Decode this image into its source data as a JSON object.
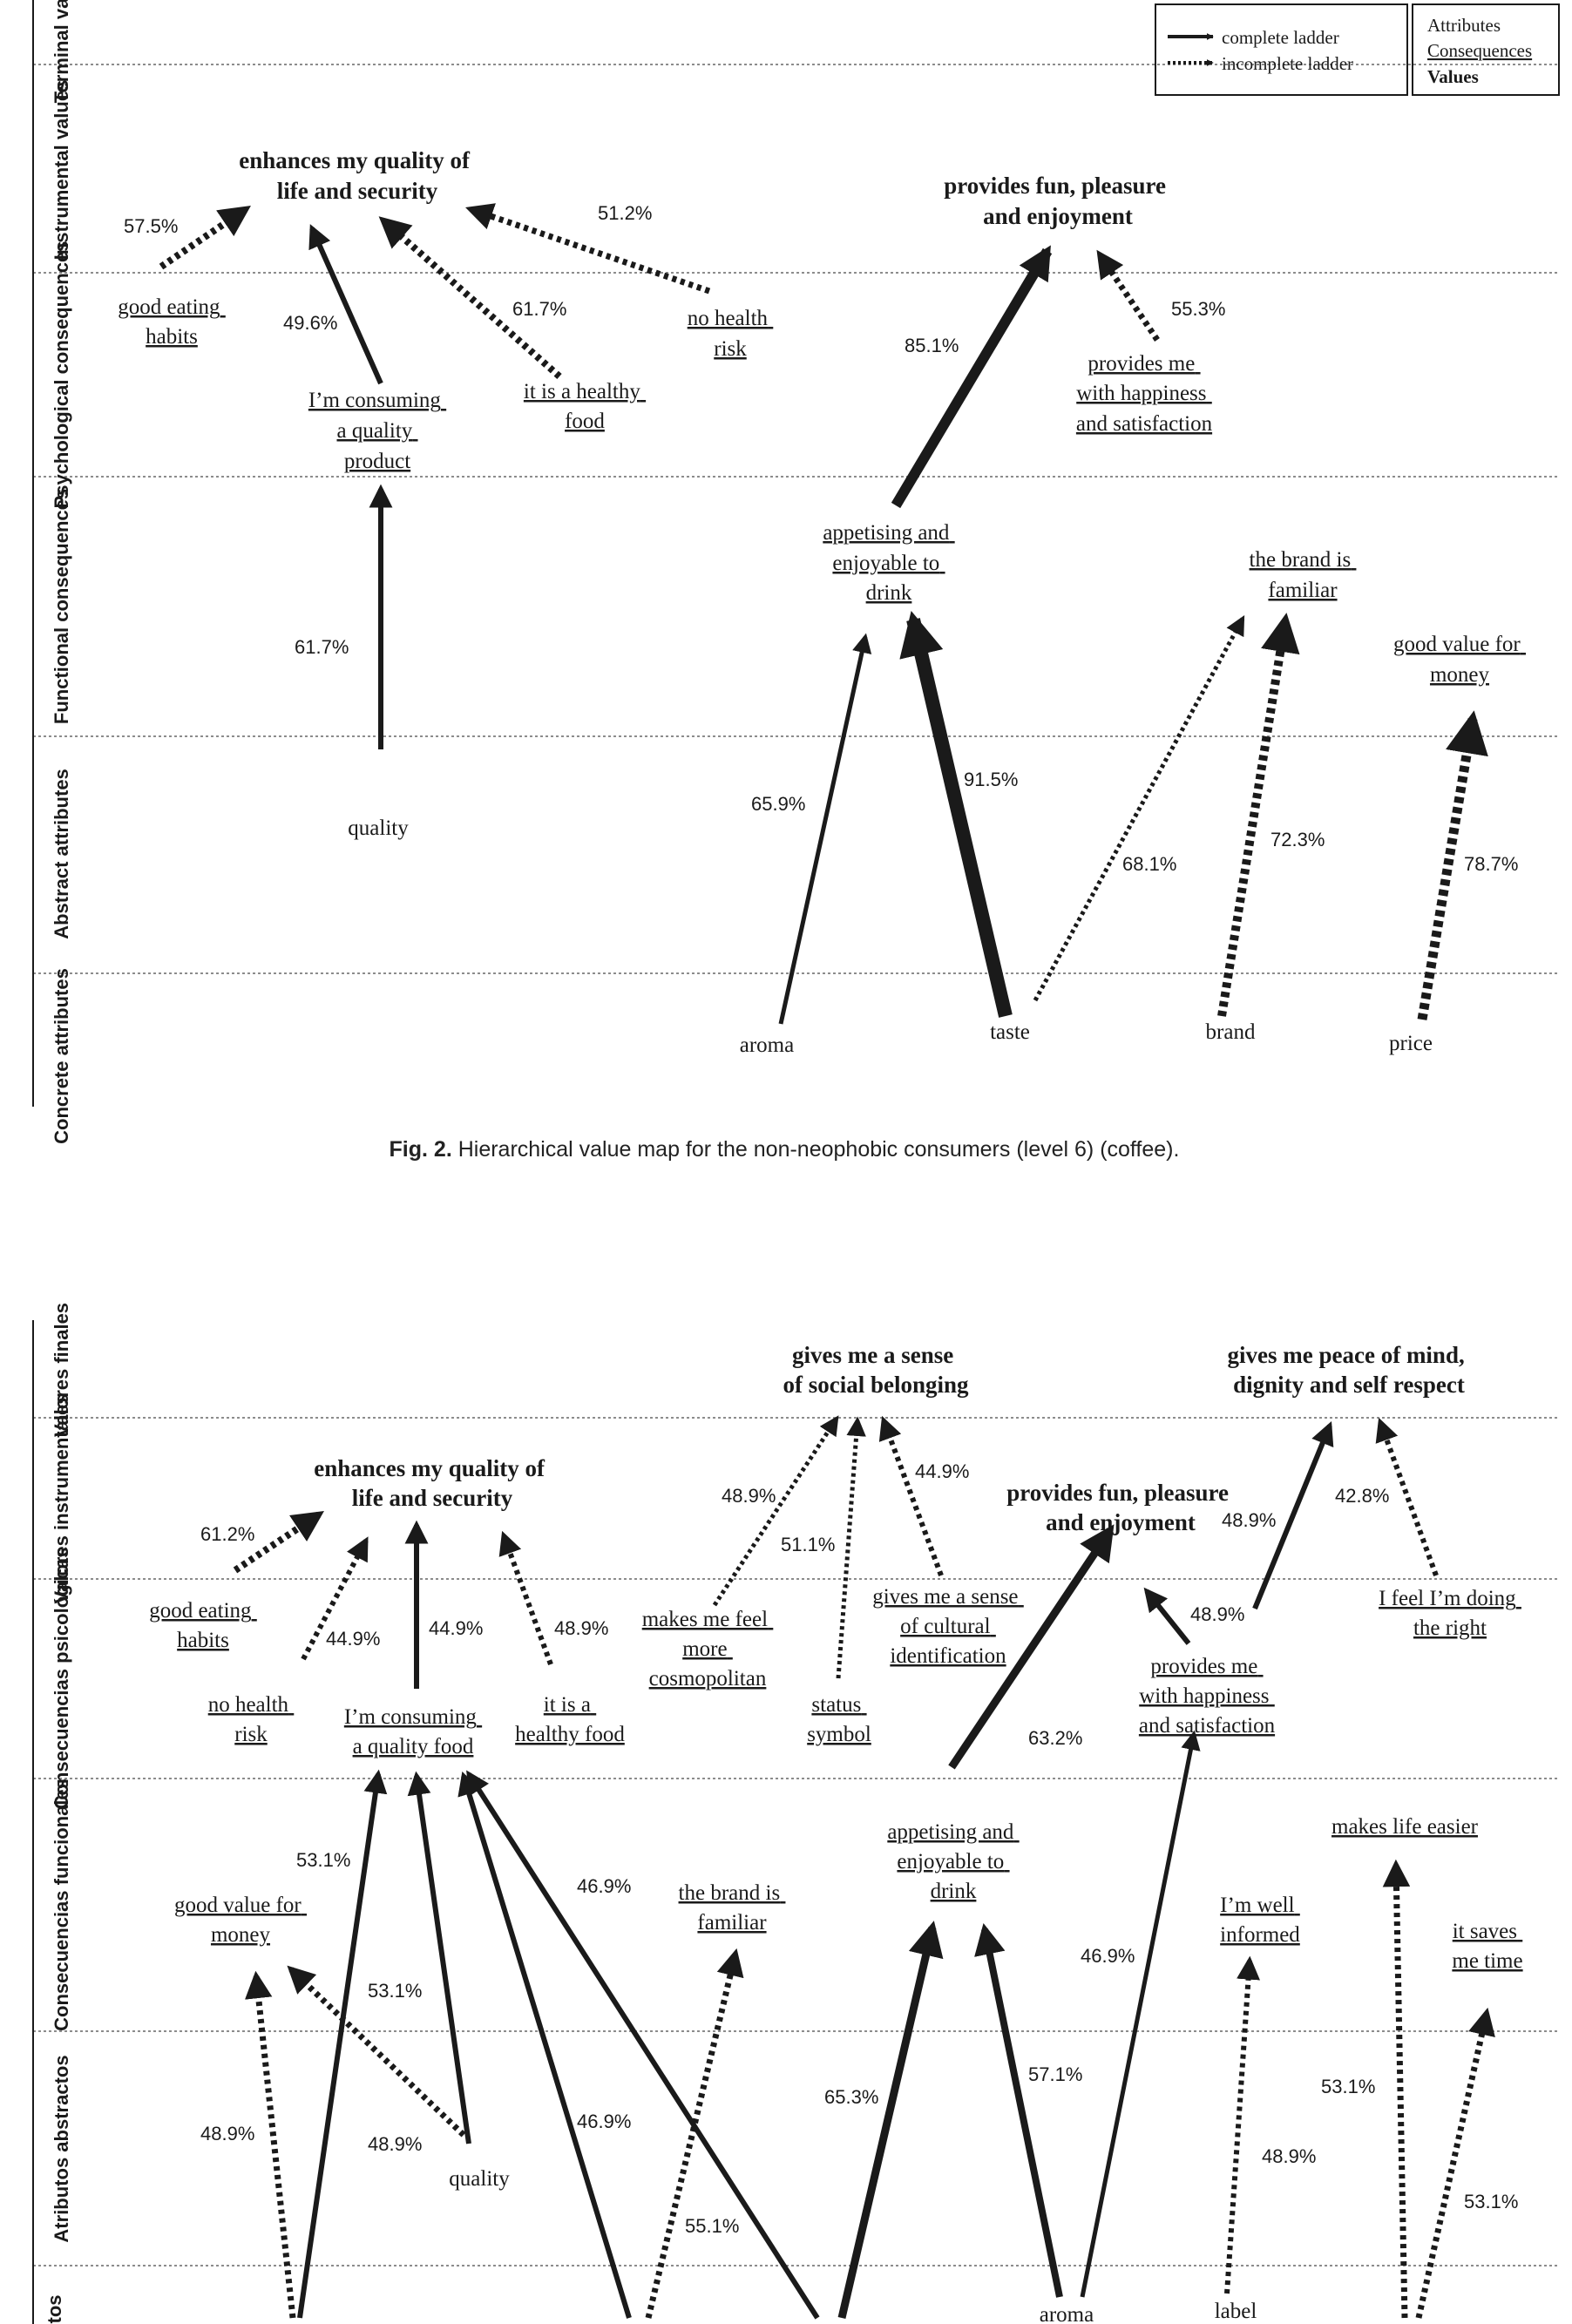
{
  "map1": {
    "levels": [
      "Terminal values",
      "Instrumental values",
      "Psychological consequences",
      "Functional consequences",
      "Abstract attributes",
      "Concrete attributes"
    ],
    "legend": {
      "complete": "complete ladder",
      "incomplete": "incomplete ladder",
      "attributes": "Attributes",
      "consequences": "Consequences",
      "values": "Values"
    },
    "nodes": {
      "quality_of_life": [
        "enhances my quality of",
        "life and security"
      ],
      "fun_pleasure": [
        "provides fun, pleasure",
        "and enjoyment"
      ],
      "good_eating": [
        "good eating",
        "habits"
      ],
      "no_health_risk": [
        "no health",
        "risk"
      ],
      "consuming_quality": [
        "I’m consuming",
        "a quality",
        "product"
      ],
      "healthy_food": [
        "it is a healthy",
        "food"
      ],
      "happiness": [
        "provides me",
        "with happiness",
        "and satisfaction"
      ],
      "appetising": [
        "appetising and",
        "enjoyable to",
        "drink"
      ],
      "brand_familiar": [
        "the brand is",
        "familiar"
      ],
      "good_value": [
        "good value for",
        "money"
      ],
      "quality": [
        "quality"
      ],
      "aroma": [
        "aroma"
      ],
      "taste": [
        "taste"
      ],
      "brand": [
        "brand"
      ],
      "price": [
        "price"
      ]
    },
    "percentages": {
      "good_eating": "57.5%",
      "consuming_quality": "49.6%",
      "healthy_food": "61.7%",
      "no_health_risk": "51.2%",
      "appetising_fun": "85.1%",
      "happiness_fun": "55.3%",
      "quality_consuming": "61.7%",
      "aroma_appetising": "65.9%",
      "taste_appetising": "91.5%",
      "taste_brand": "68.1%",
      "brand_brand": "72.3%",
      "price_value": "78.7%"
    },
    "caption_label": "Fig. 2.",
    "caption_text": "Hierarchical value map for the non-neophobic consumers (level 6) (coffee)."
  },
  "map2": {
    "levels": [
      "Valores finales",
      "Valores instrumentales",
      "Consecuencias psicológicas",
      "Consecuencias funcionales",
      "Atributos abstractos",
      "tos"
    ],
    "nodes": {
      "social_belonging": [
        "gives me a sense",
        "of social belonging"
      ],
      "peace_of_mind": [
        "gives me peace of mind,",
        "dignity and self respect"
      ],
      "quality_of_life": [
        "enhances my quality of",
        "life and security"
      ],
      "fun_pleasure": [
        "provides fun, pleasure",
        "and enjoyment"
      ],
      "good_eating": [
        "good eating",
        "habits"
      ],
      "no_health_risk": [
        "no health",
        "risk"
      ],
      "consuming_quality": [
        "I’m consuming",
        "a quality food"
      ],
      "healthy_food": [
        "it is a",
        "healthy food"
      ],
      "cosmopolitan": [
        "makes me feel",
        "more",
        "cosmopolitan"
      ],
      "status_symbol": [
        "status",
        "symbol"
      ],
      "cultural": [
        "gives me a sense",
        "of cultural",
        "identification"
      ],
      "happiness": [
        "provides me",
        "with happiness",
        "and satisfaction"
      ],
      "doing_right": [
        "I feel I’m doing",
        "the right"
      ],
      "good_value": [
        "good value for",
        "money"
      ],
      "brand_familiar": [
        "the brand is",
        "familiar"
      ],
      "appetising": [
        "appetising and",
        "enjoyable to",
        "drink"
      ],
      "makes_life_easier": [
        "makes life easier"
      ],
      "well_informed": [
        "I’m well",
        "informed"
      ],
      "saves_time": [
        "it saves",
        "me time"
      ],
      "quality": [
        "quality"
      ],
      "aroma": [
        "aroma"
      ],
      "label": [
        "label"
      ]
    },
    "percentages": {
      "p612": "61.2%",
      "p449a": "44.9%",
      "p449b": "44.9%",
      "p489a": "48.9%",
      "p489b": "48.9%",
      "p511": "51.1%",
      "p449c": "44.9%",
      "p489c": "48.9%",
      "p428": "42.8%",
      "p489d": "48.9%",
      "p632": "63.2%",
      "p531a": "53.1%",
      "p469a": "46.9%",
      "p531b": "53.1%",
      "p489e": "48.9%",
      "p489f": "48.9%",
      "p469b": "46.9%",
      "p551": "55.1%",
      "p653": "65.3%",
      "p571": "57.1%",
      "p469c": "46.9%",
      "p531c": "53.1%",
      "p489g": "48.9%",
      "p531d": "53.1%"
    }
  }
}
